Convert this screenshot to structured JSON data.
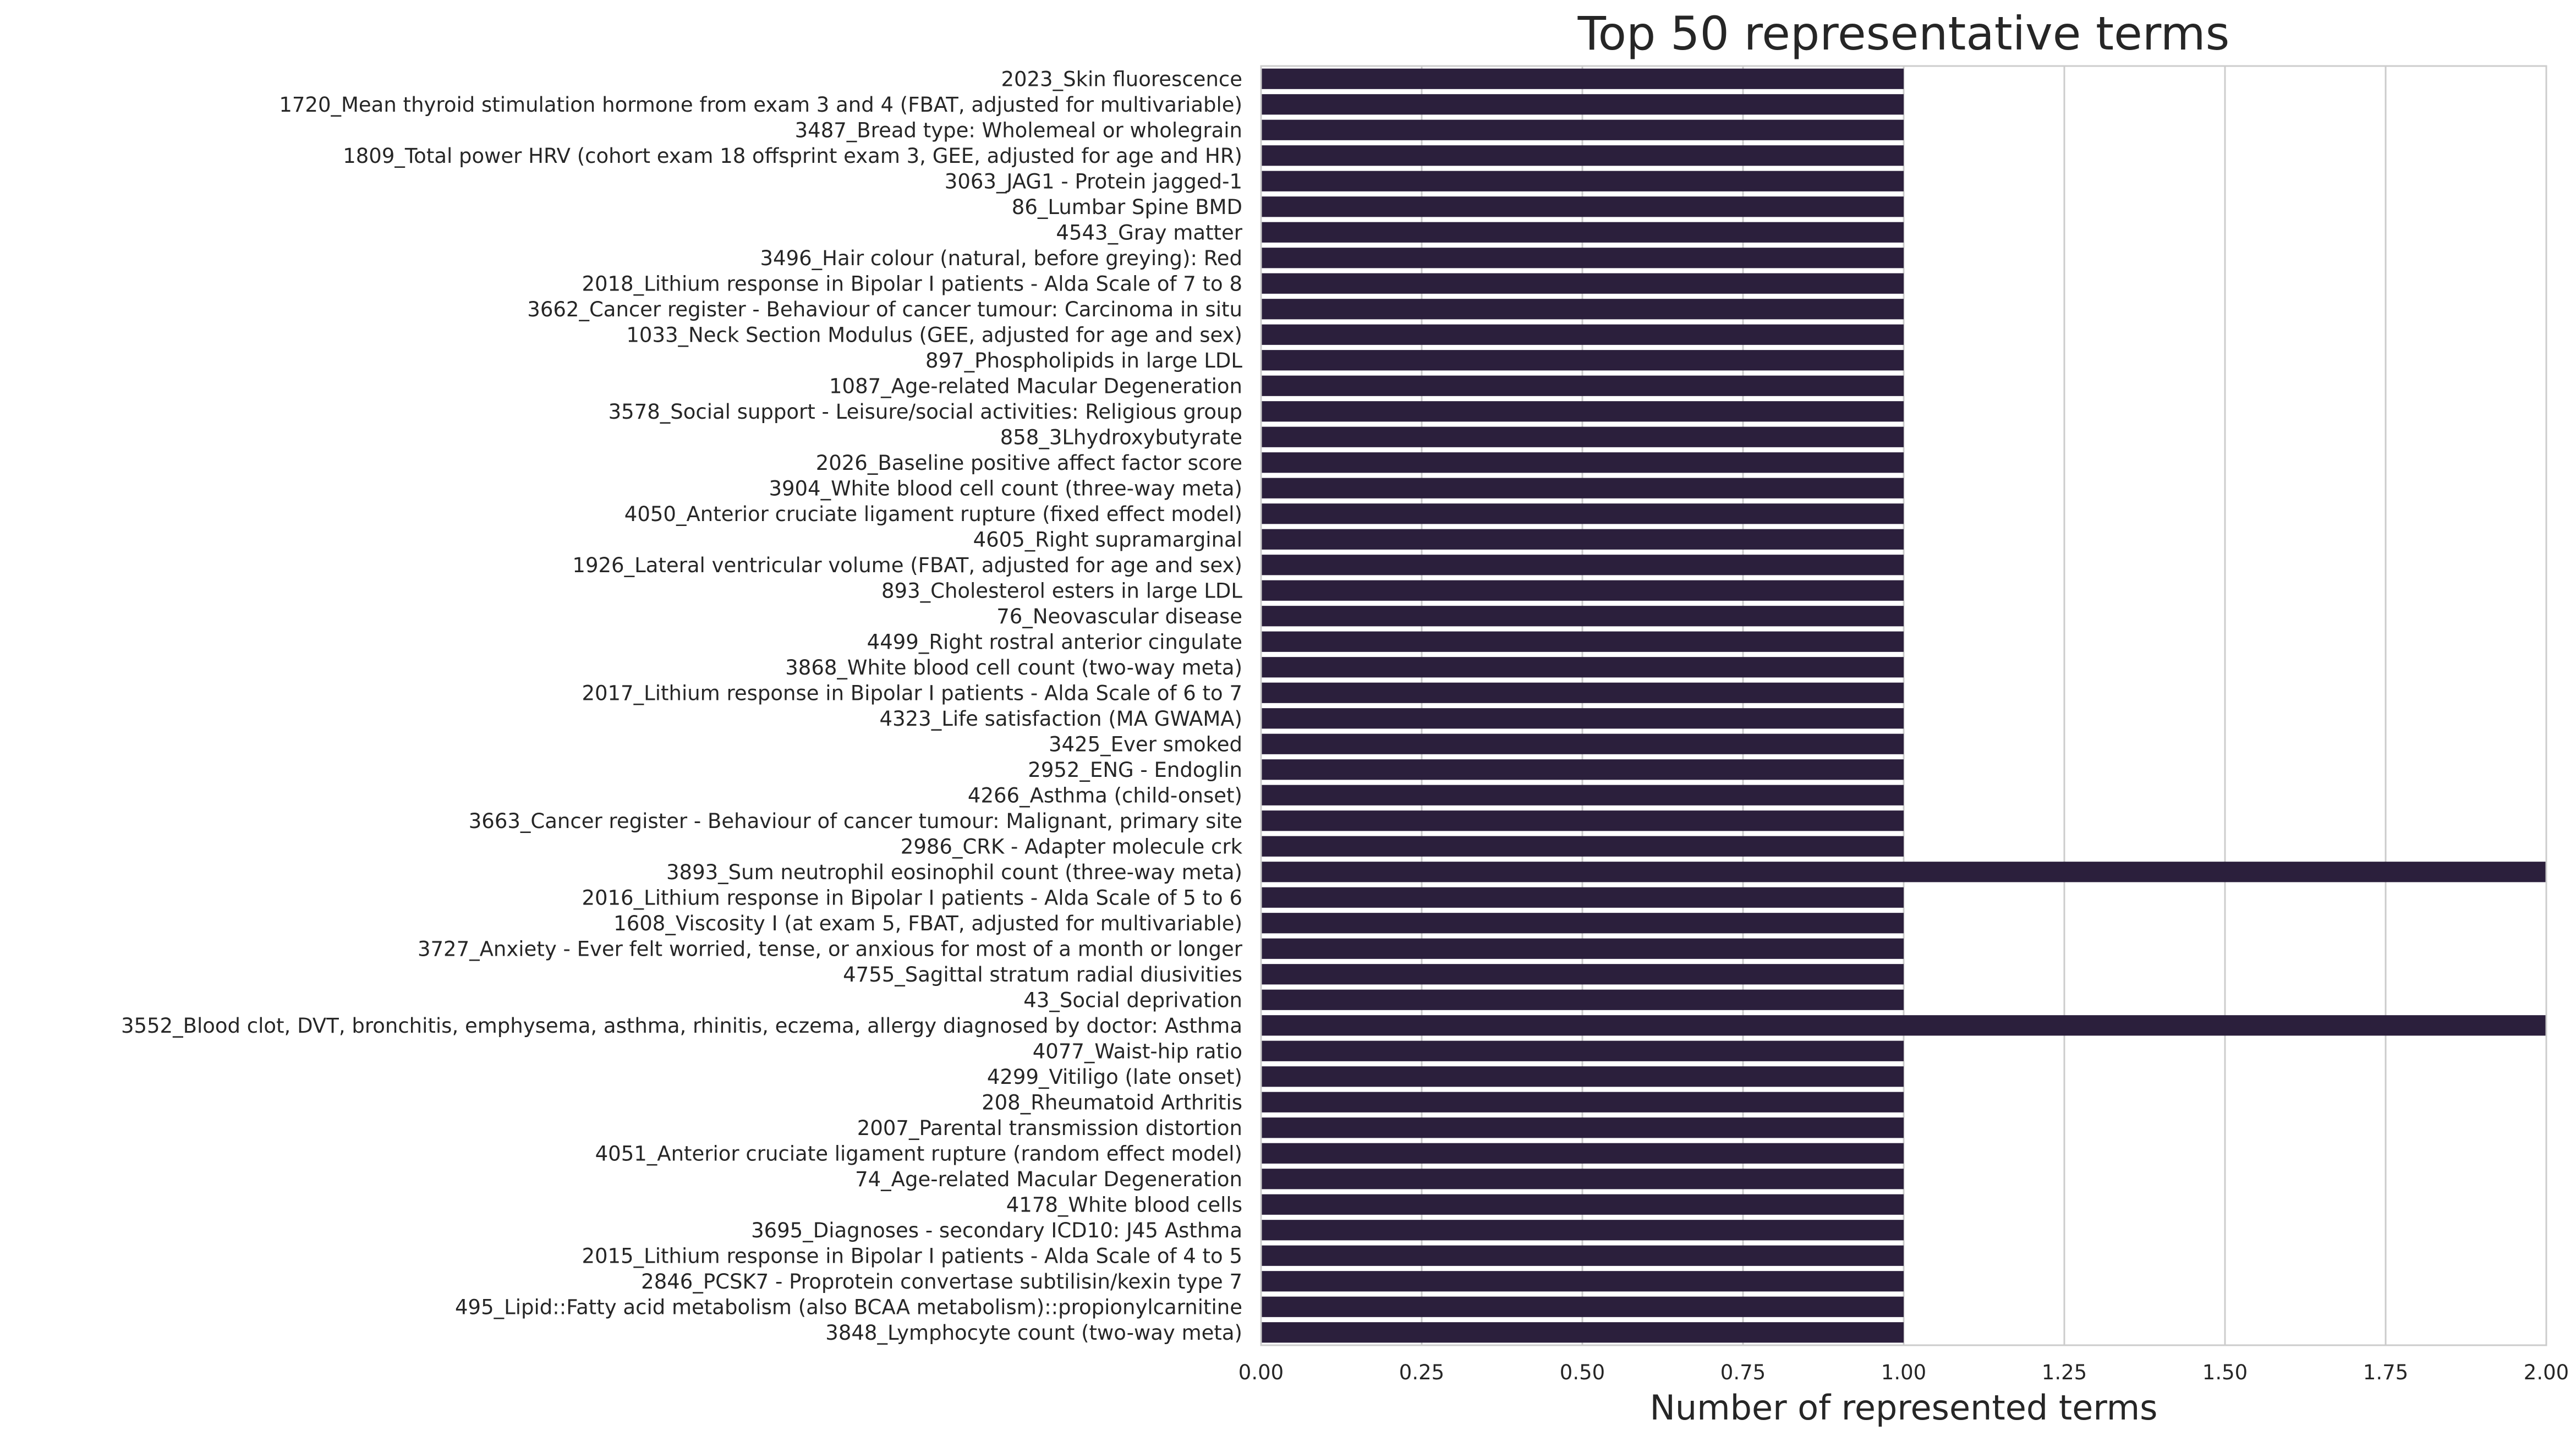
{
  "chart_data": {
    "type": "bar",
    "orientation": "horizontal",
    "title": "Top 50 representative terms",
    "xlabel": "Number of represented terms",
    "ylabel": "",
    "xlim": [
      0,
      2
    ],
    "xticks": [
      "0.00",
      "0.25",
      "0.50",
      "0.75",
      "1.00",
      "1.25",
      "1.50",
      "1.75",
      "2.00"
    ],
    "grid": "vertical",
    "bar_color": "#2b1f3c",
    "categories": [
      "2023_Skin fluorescence",
      "1720_Mean thyroid stimulation hormone from exam 3 and 4 (FBAT, adjusted for multivariable)",
      "3487_Bread type: Wholemeal or wholegrain",
      "1809_Total power HRV (cohort exam 18 offsprint exam 3, GEE, adjusted for age and HR)",
      "3063_JAG1 - Protein jagged-1",
      "86_Lumbar Spine BMD",
      "4543_Gray matter",
      "3496_Hair colour (natural, before greying): Red",
      "2018_Lithium response in Bipolar I patients - Alda Scale of 7 to 8",
      "3662_Cancer register - Behaviour of cancer tumour: Carcinoma in situ",
      "1033_Neck Section Modulus (GEE, adjusted for age and sex)",
      "897_Phospholipids in large LDL",
      "1087_Age-related Macular Degeneration",
      "3578_Social support - Leisure/social activities: Religious group",
      "858_3Lhydroxybutyrate",
      "2026_Baseline positive affect factor score",
      "3904_White blood cell count (three-way meta)",
      "4050_Anterior cruciate ligament rupture (fixed effect model)",
      "4605_Right supramarginal",
      "1926_Lateral ventricular volume (FBAT, adjusted for age and sex)",
      "893_Cholesterol esters in large LDL",
      "76_Neovascular disease",
      "4499_Right rostral anterior cingulate",
      "3868_White blood cell count (two-way meta)",
      "2017_Lithium response in Bipolar I patients - Alda Scale of 6 to 7",
      "4323_Life satisfaction (MA GWAMA)",
      "3425_Ever smoked",
      "2952_ENG - Endoglin",
      "4266_Asthma (child-onset)",
      "3663_Cancer register - Behaviour of cancer tumour: Malignant, primary site",
      "2986_CRK - Adapter molecule crk",
      "3893_Sum neutrophil eosinophil count (three-way meta)",
      "2016_Lithium response in Bipolar I patients - Alda Scale of 5 to 6",
      "1608_Viscosity I (at exam 5, FBAT, adjusted for multivariable)",
      "3727_Anxiety - Ever felt worried, tense, or anxious for most of a month or longer",
      "4755_Sagittal stratum radial diusivities",
      "43_Social deprivation",
      "3552_Blood clot, DVT, bronchitis, emphysema, asthma, rhinitis, eczema, allergy diagnosed by doctor: Asthma",
      "4077_Waist-hip ratio",
      "4299_Vitiligo (late onset)",
      "208_Rheumatoid Arthritis",
      "2007_Parental transmission distortion",
      "4051_Anterior cruciate ligament rupture (random effect model)",
      "74_Age-related Macular Degeneration",
      "4178_White blood cells",
      "3695_Diagnoses - secondary ICD10: J45 Asthma",
      "2015_Lithium response in Bipolar I patients - Alda Scale of 4 to 5",
      "2846_PCSK7 - Proprotein convertase subtilisin/kexin type 7",
      "495_Lipid::Fatty acid metabolism (also BCAA metabolism)::propionylcarnitine",
      "3848_Lymphocyte count (two-way meta)"
    ],
    "values": [
      1,
      1,
      1,
      1,
      1,
      1,
      1,
      1,
      1,
      1,
      1,
      1,
      1,
      1,
      1,
      1,
      1,
      1,
      1,
      1,
      1,
      1,
      1,
      1,
      1,
      1,
      1,
      1,
      1,
      1,
      1,
      2,
      1,
      1,
      1,
      1,
      1,
      2,
      1,
      1,
      1,
      1,
      1,
      1,
      1,
      1,
      1,
      1,
      1,
      1
    ]
  }
}
